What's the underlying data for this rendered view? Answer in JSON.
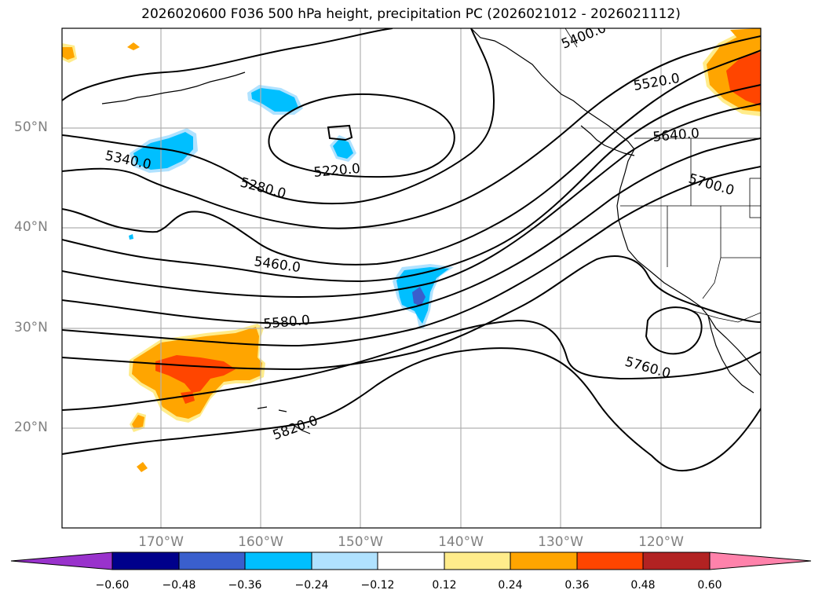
{
  "title": "2026020600 F036 500 hPa height, precipitation PC (2026021012 - 2026021112)",
  "lat_labels": [
    "50°N",
    "40°N",
    "30°N",
    "20°N"
  ],
  "lon_labels": [
    "170°W",
    "160°W",
    "150°W",
    "140°W",
    "130°W",
    "120°W"
  ],
  "contour_labels": [
    "5400.0",
    "5520.0",
    "5640.0",
    "5700.0",
    "5340.0",
    "5280.0",
    "5220.0",
    "5460.0",
    "5580.0",
    "5760.0",
    "5820.0"
  ],
  "colorbar": {
    "ticks": [
      "−0.60",
      "−0.48",
      "−0.36",
      "−0.24",
      "−0.12",
      "0.12",
      "0.24",
      "0.36",
      "0.48",
      "0.60"
    ],
    "colors": [
      "#9932cc",
      "#00008b",
      "#3a5fcd",
      "#00bfff",
      "#b0e2ff",
      "#ffffff",
      "#ffec8b",
      "#ffa500",
      "#ff4500",
      "#b22222",
      "#ff82ab"
    ]
  },
  "colors": {
    "orange": "#ffa500",
    "red_orange": "#ff4500",
    "light_yellow": "#ffec8b",
    "deep_sky_blue": "#00bfff",
    "light_blue": "#b0e2ff",
    "blue": "#3a5fcd"
  }
}
